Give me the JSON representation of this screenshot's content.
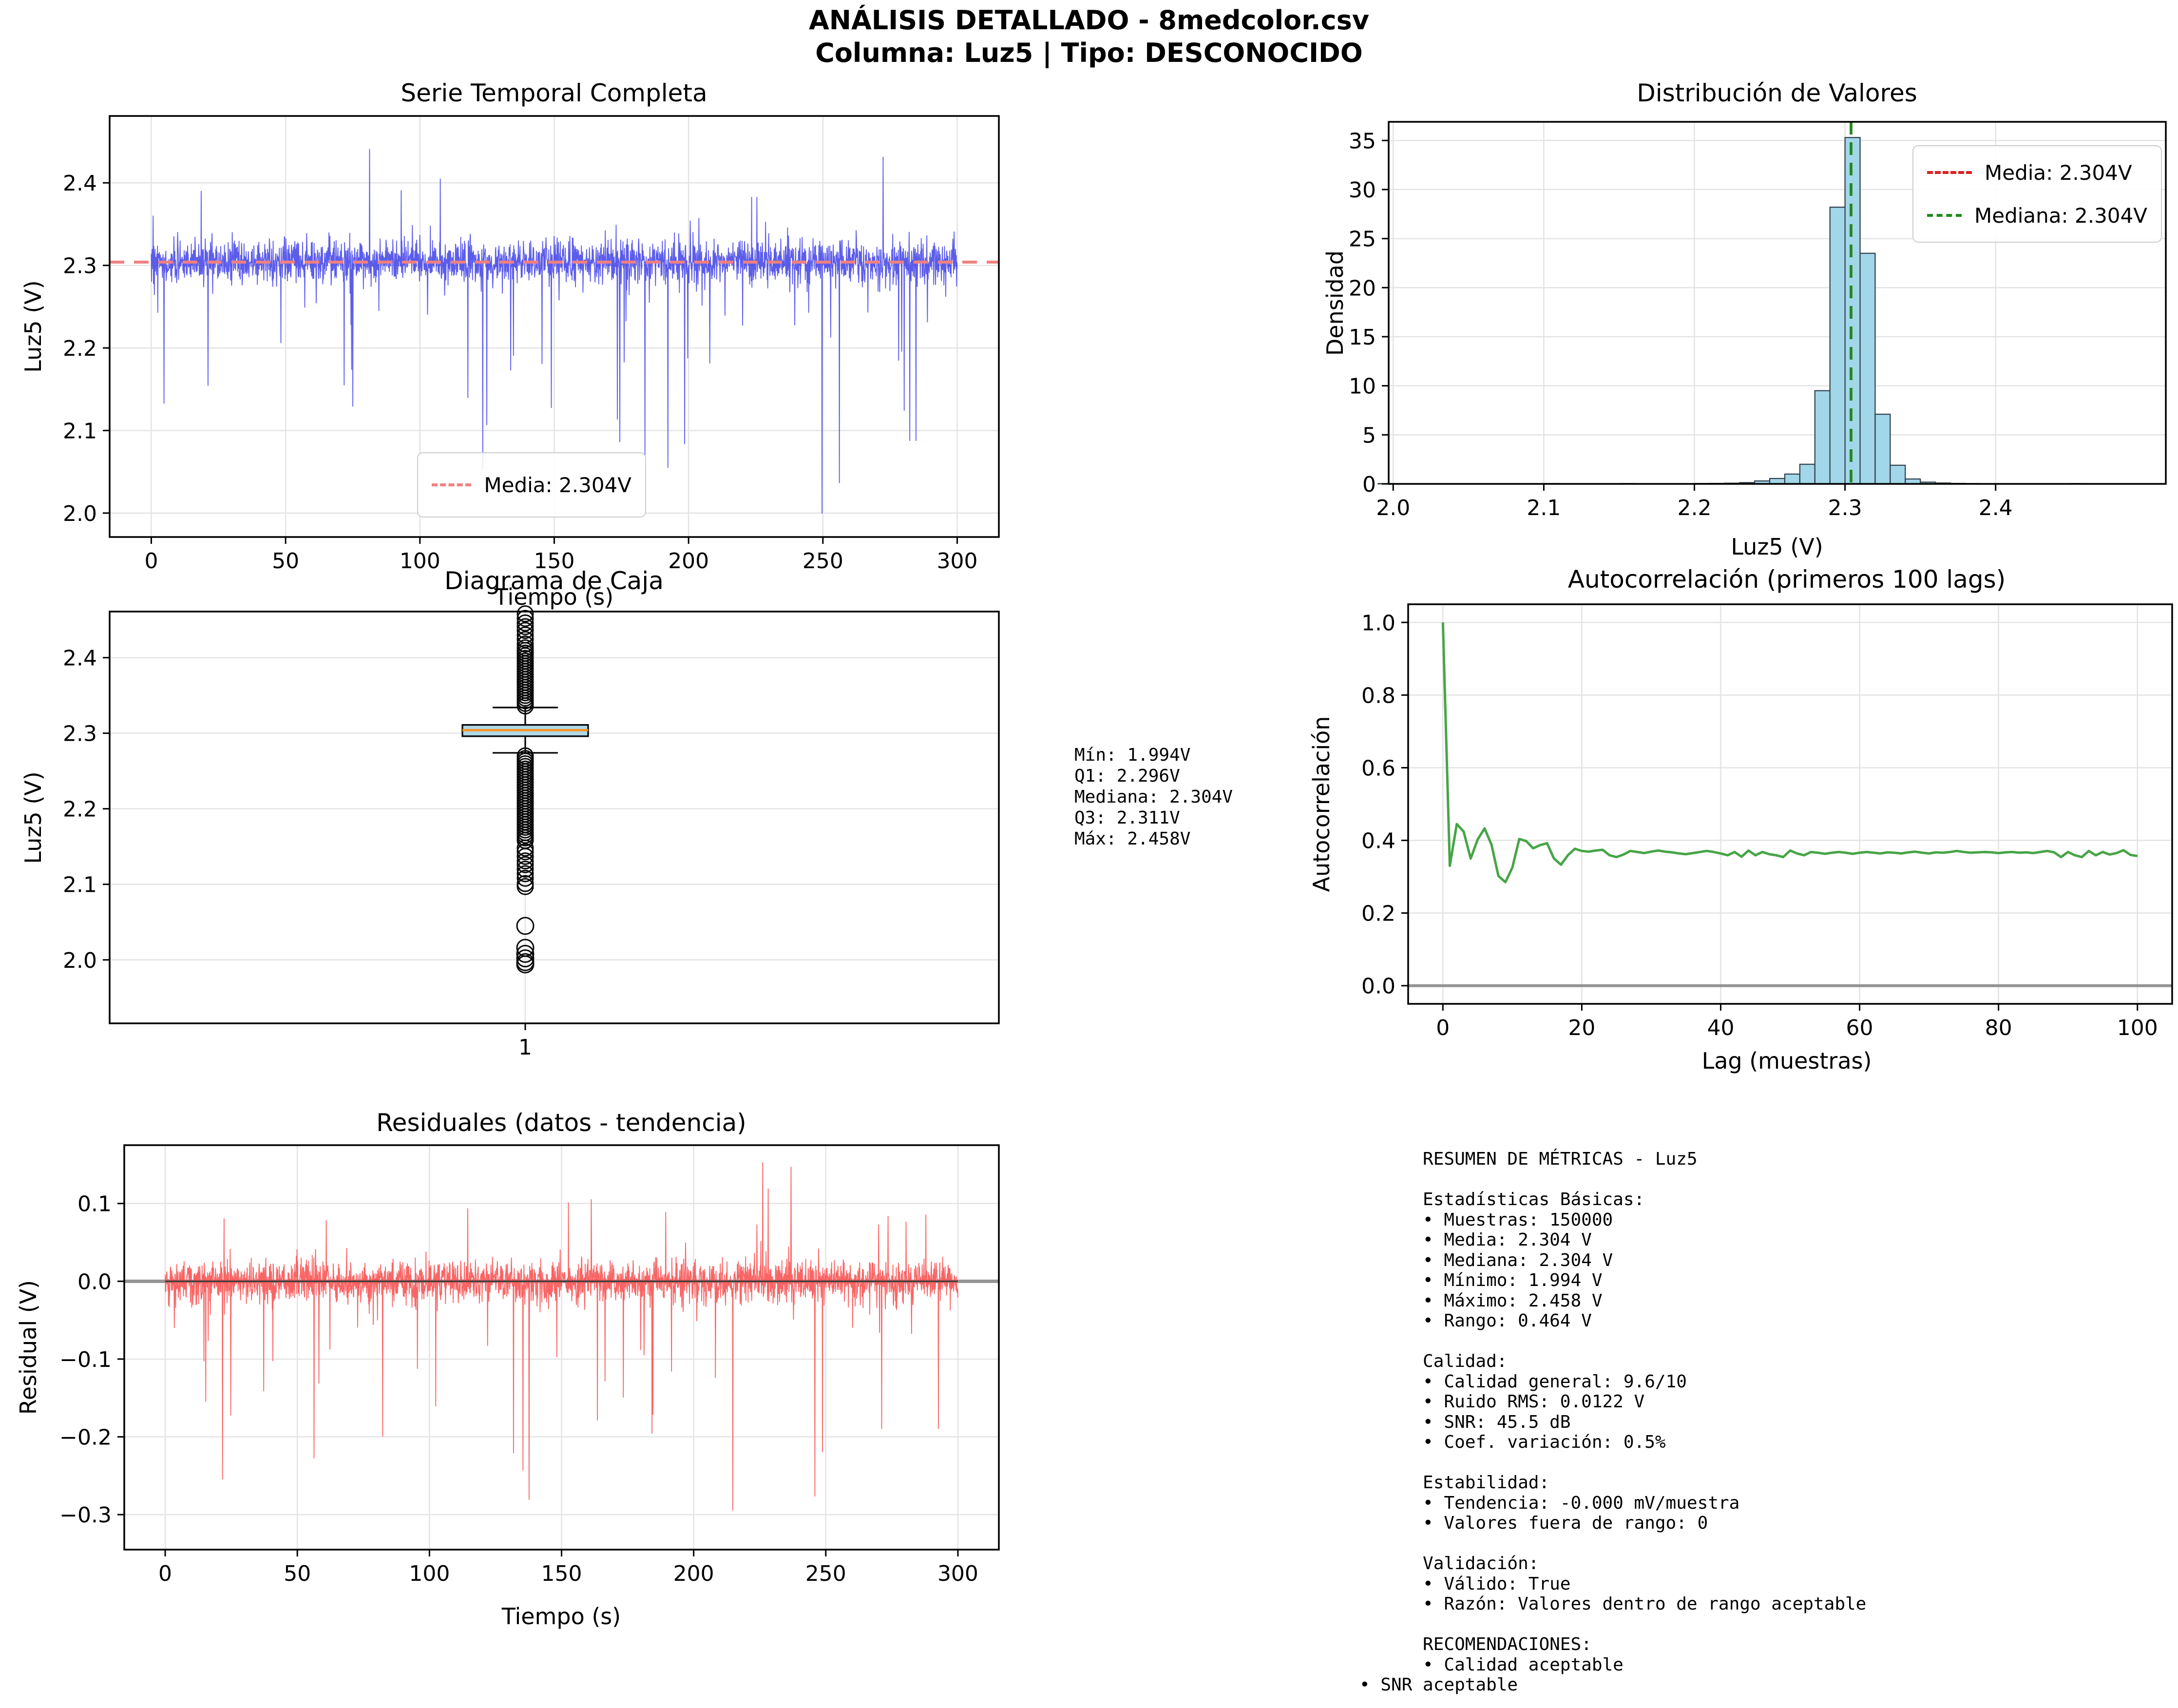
{
  "suptitle": {
    "line1": "ANÁLISIS DETALLADO - 8medcolor.csv",
    "line2": "Columna: Luz5 | Tipo: DESCONOCIDO"
  },
  "colors": {
    "series_blue": "#4040e8",
    "mean_salmon": "#f08080",
    "hist_fill": "#a2d6e9",
    "hist_edge": "#2e3e48",
    "mean_red": "#dd2222",
    "median_green": "#1e8c1e",
    "box_fill": "#add8e6",
    "box_median_orange": "#ff9018",
    "acf_green": "#46a546",
    "resid_red": "#f85050",
    "zero_gray": "#949494",
    "grid_gray": "#e3e3e3"
  },
  "chart_data": [
    {
      "id": "serie",
      "type": "line",
      "title": "Serie Temporal Completa",
      "xlabel": "Tiempo (s)",
      "ylabel": "Luz5 (V)",
      "xlim": [
        -15.5,
        315.5
      ],
      "ylim": [
        1.971,
        2.481
      ],
      "xticks": [
        0,
        50,
        100,
        150,
        200,
        250,
        300
      ],
      "yticks": [
        2.0,
        2.1,
        2.2,
        2.3,
        2.4
      ],
      "mean": 2.304,
      "color": "#4040e8",
      "legend": [
        {
          "label": "Media: 2.304V",
          "color": "#f08080"
        }
      ],
      "gen": {
        "n": 2600,
        "base": 2.304,
        "std": 0.013,
        "up_prob": 0.008,
        "up_min": 0.035,
        "up_max": 0.155,
        "down_prob": 0.02,
        "down_min": 0.035,
        "down_max": 0.31,
        "clip": [
          1.994,
          2.458
        ]
      }
    },
    {
      "id": "hist",
      "type": "bar",
      "title": "Distribución de Valores",
      "xlabel": "Luz5 (V)",
      "ylabel": "Densidad",
      "xlim": [
        1.997,
        2.513
      ],
      "ylim": [
        0,
        36.9
      ],
      "xticks": [
        2.0,
        2.1,
        2.2,
        2.3,
        2.4
      ],
      "yticks": [
        0,
        5,
        10,
        15,
        20,
        25,
        30,
        35
      ],
      "bin_width": 0.01,
      "bins": [
        {
          "start": 1.99,
          "h": 0.03
        },
        {
          "start": 2.04,
          "h": 0.02
        },
        {
          "start": 2.1,
          "h": 0.03
        },
        {
          "start": 2.15,
          "h": 0.03
        },
        {
          "start": 2.2,
          "h": 0.04
        },
        {
          "start": 2.21,
          "h": 0.05
        },
        {
          "start": 2.22,
          "h": 0.07
        },
        {
          "start": 2.23,
          "h": 0.13
        },
        {
          "start": 2.24,
          "h": 0.3
        },
        {
          "start": 2.25,
          "h": 0.55
        },
        {
          "start": 2.26,
          "h": 1.0
        },
        {
          "start": 2.27,
          "h": 2.0
        },
        {
          "start": 2.28,
          "h": 9.5
        },
        {
          "start": 2.29,
          "h": 28.2
        },
        {
          "start": 2.3,
          "h": 35.3
        },
        {
          "start": 2.31,
          "h": 23.5
        },
        {
          "start": 2.32,
          "h": 7.1
        },
        {
          "start": 2.33,
          "h": 1.9
        },
        {
          "start": 2.34,
          "h": 0.5
        },
        {
          "start": 2.35,
          "h": 0.18
        },
        {
          "start": 2.36,
          "h": 0.09
        },
        {
          "start": 2.37,
          "h": 0.05
        },
        {
          "start": 2.38,
          "h": 0.03
        },
        {
          "start": 2.4,
          "h": 0.02
        },
        {
          "start": 2.42,
          "h": 0.02
        },
        {
          "start": 2.44,
          "h": 0.02
        },
        {
          "start": 2.45,
          "h": 0.03
        }
      ],
      "mean": 2.304,
      "median": 2.304,
      "legend": [
        {
          "label": "Media: 2.304V",
          "color": "#dd2222"
        },
        {
          "label": "Mediana: 2.304V",
          "color": "#1e8c1e"
        }
      ]
    },
    {
      "id": "box",
      "type": "box",
      "title": "Diagrama de Caja",
      "ylabel": "Luz5 (V)",
      "xtick_label": "1",
      "ylim": [
        1.916,
        2.461
      ],
      "yticks": [
        2.0,
        2.1,
        2.2,
        2.3,
        2.4
      ],
      "q1": 2.296,
      "median": 2.304,
      "q3": 2.311,
      "whisker_low": 2.274,
      "whisker_high": 2.334,
      "min": 1.994,
      "max": 2.458,
      "outliers_high_dense": [
        2.336,
        2.41
      ],
      "outliers_high_sparse": [
        2.413,
        2.418,
        2.424,
        2.43,
        2.436,
        2.441,
        2.446,
        2.452,
        2.458
      ],
      "outliers_low_dense": [
        2.155,
        2.27
      ],
      "outliers_low_sparse": [
        2.148,
        2.143,
        2.137,
        2.131,
        2.126,
        2.12,
        2.114,
        2.108,
        2.101,
        2.097
      ],
      "outliers_low_isolated": [
        2.045,
        2.016,
        2.008,
        2.002,
        1.997,
        1.994
      ]
    },
    {
      "id": "acf",
      "type": "line",
      "title": "Autocorrelación (primeros 100 lags)",
      "xlabel": "Lag (muestras)",
      "ylabel": "Autocorrelación",
      "xlim": [
        -5,
        105
      ],
      "ylim": [
        -0.05,
        1.05
      ],
      "xticks": [
        0,
        20,
        40,
        60,
        80,
        100
      ],
      "yticks": [
        0.0,
        0.2,
        0.4,
        0.6,
        0.8,
        1.0
      ],
      "color": "#46a546",
      "values": [
        1.0,
        0.33,
        0.445,
        0.424,
        0.35,
        0.402,
        0.433,
        0.388,
        0.302,
        0.285,
        0.325,
        0.404,
        0.398,
        0.378,
        0.387,
        0.392,
        0.35,
        0.333,
        0.359,
        0.377,
        0.371,
        0.369,
        0.372,
        0.374,
        0.359,
        0.354,
        0.361,
        0.371,
        0.368,
        0.365,
        0.369,
        0.372,
        0.369,
        0.367,
        0.364,
        0.362,
        0.365,
        0.368,
        0.371,
        0.368,
        0.364,
        0.359,
        0.368,
        0.355,
        0.372,
        0.359,
        0.368,
        0.362,
        0.359,
        0.354,
        0.372,
        0.364,
        0.359,
        0.368,
        0.366,
        0.363,
        0.366,
        0.368,
        0.366,
        0.363,
        0.366,
        0.368,
        0.366,
        0.364,
        0.367,
        0.366,
        0.364,
        0.367,
        0.369,
        0.366,
        0.364,
        0.367,
        0.366,
        0.368,
        0.371,
        0.368,
        0.366,
        0.367,
        0.368,
        0.367,
        0.365,
        0.367,
        0.368,
        0.366,
        0.367,
        0.365,
        0.368,
        0.371,
        0.367,
        0.354,
        0.368,
        0.359,
        0.354,
        0.371,
        0.359,
        0.368,
        0.361,
        0.365,
        0.373,
        0.36,
        0.357
      ]
    },
    {
      "id": "resid",
      "type": "line",
      "title": "Residuales (datos - tendencia)",
      "xlabel": "Tiempo (s)",
      "ylabel": "Residual (V)",
      "xlim": [
        -15.5,
        315.5
      ],
      "ylim": [
        -0.345,
        0.175
      ],
      "xticks": [
        0,
        50,
        100,
        150,
        200,
        250,
        300
      ],
      "yticks": [
        0.1,
        0.0,
        -0.1,
        -0.2,
        -0.3
      ],
      "color": "#f85050",
      "gen": {
        "n": 2600,
        "base": 0,
        "std": 0.013,
        "up_prob": 0.008,
        "up_min": 0.03,
        "up_max": 0.16,
        "down_prob": 0.02,
        "down_min": 0.03,
        "down_max": 0.315,
        "clip": [
          -0.315,
          0.16
        ]
      }
    }
  ],
  "box_stats": {
    "lines": [
      "Mín: 1.994V",
      "Q1: 2.296V",
      "Mediana: 2.304V",
      "Q3: 2.311V",
      "Máx: 2.458V"
    ]
  },
  "summary": {
    "lines": [
      "      RESUMEN DE MÉTRICAS - Luz5",
      "",
      "      Estadísticas Básicas:",
      "      • Muestras: 150000",
      "      • Media: 2.304 V",
      "      • Mediana: 2.304 V",
      "      • Mínimo: 1.994 V",
      "      • Máximo: 2.458 V",
      "      • Rango: 0.464 V",
      "",
      "      Calidad:",
      "      • Calidad general: 9.6/10",
      "      • Ruido RMS: 0.0122 V",
      "      • SNR: 45.5 dB",
      "      • Coef. variación: 0.5%",
      "",
      "      Estabilidad:",
      "      • Tendencia: -0.000 mV/muestra",
      "      • Valores fuera de rango: 0",
      "",
      "      Validación:",
      "      • Válido: True",
      "      • Razón: Valores dentro de rango aceptable",
      "",
      "      RECOMENDACIONES:",
      "      • Calidad aceptable",
      "• SNR aceptable"
    ]
  }
}
